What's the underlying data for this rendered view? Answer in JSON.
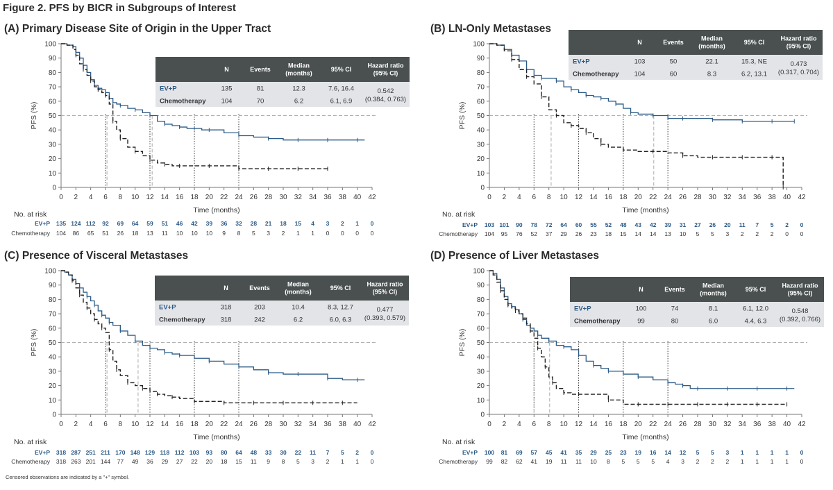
{
  "figure_title": "Figure 2. PFS by BICR in Subgroups of Interest",
  "footnote": "Censored observations are indicated by a \"+\" symbol.",
  "colors": {
    "ev": "#2b5a86",
    "chemo": "#222222",
    "table_header": "#4a5050",
    "table_body": "#e2e4e8",
    "reference": "#b0b0b0"
  },
  "common": {
    "ylabel": "PFS (%)",
    "xlabel": "Time (months)",
    "xticks": [
      0,
      2,
      4,
      6,
      8,
      10,
      12,
      14,
      16,
      18,
      20,
      22,
      24,
      26,
      28,
      30,
      32,
      34,
      36,
      38,
      40,
      42
    ],
    "yticks": [
      0,
      10,
      20,
      30,
      40,
      50,
      60,
      70,
      80,
      90,
      100
    ],
    "risk_title": "No. at risk",
    "table_headers": [
      "N",
      "Events",
      "Median\n(months)",
      "95% CI",
      "Hazard ratio\n(95% CI)"
    ]
  },
  "chart_data": [
    {
      "type": "line",
      "title": "(A) Primary Disease Site of Origin in the Upper Tract",
      "xlim": [
        0,
        42
      ],
      "ylim": [
        0,
        100
      ],
      "series": [
        {
          "name": "EV+P",
          "x": [
            0,
            0.8,
            1.6,
            2,
            2.5,
            3,
            3.5,
            4,
            4.5,
            5,
            5.5,
            6,
            6.5,
            7,
            7.5,
            8,
            9,
            10,
            11,
            12,
            13,
            14,
            15,
            16,
            17,
            18,
            19,
            20,
            22,
            24,
            26,
            28,
            30,
            32,
            34,
            36,
            38,
            40,
            41
          ],
          "y": [
            100,
            99,
            98,
            94,
            90,
            85,
            80,
            75,
            71,
            69,
            68,
            66,
            62,
            59,
            58,
            57,
            55,
            54,
            52,
            50,
            46,
            44,
            43,
            42,
            41,
            41,
            40,
            40,
            38,
            36,
            35,
            34,
            33,
            33,
            33,
            33,
            33,
            33,
            33
          ]
        },
        {
          "name": "Chemotherapy",
          "x": [
            0,
            0.8,
            1.6,
            2,
            2.5,
            3,
            3.5,
            4,
            4.5,
            5,
            5.5,
            6,
            6.5,
            7,
            7.5,
            8,
            9,
            10,
            11,
            12,
            13,
            14,
            15,
            16,
            18,
            20,
            22,
            24,
            26,
            28,
            30,
            32,
            34,
            36
          ],
          "y": [
            100,
            99,
            96,
            92,
            86,
            82,
            78,
            74,
            70,
            68,
            66,
            64,
            58,
            46,
            40,
            34,
            28,
            25,
            22,
            19,
            17,
            16,
            15,
            15,
            15,
            15,
            15,
            13,
            13,
            13,
            13,
            13,
            13,
            13
          ]
        }
      ],
      "medians": [
        6.2,
        12.3
      ],
      "table": {
        "rows": [
          {
            "label": "EV+P",
            "n": "135",
            "events": "81",
            "median": "12.3",
            "ci": "7.6, 16.4"
          },
          {
            "label": "Chemotherapy",
            "n": "104",
            "events": "70",
            "median": "6.2",
            "ci": "6.1, 6.9"
          }
        ],
        "hr": "0.542",
        "hr_ci": "(0.384, 0.763)"
      },
      "at_risk": {
        "EV+P": [
          "135",
          "124",
          "112",
          "92",
          "69",
          "64",
          "59",
          "51",
          "46",
          "42",
          "39",
          "36",
          "32",
          "28",
          "21",
          "18",
          "15",
          "4",
          "3",
          "2",
          "1",
          "0"
        ],
        "Chemotherapy": [
          "104",
          "86",
          "65",
          "51",
          "26",
          "18",
          "13",
          "11",
          "10",
          "10",
          "10",
          "9",
          "8",
          "5",
          "3",
          "2",
          "1",
          "1",
          "0",
          "0",
          "0",
          "0"
        ]
      }
    },
    {
      "type": "line",
      "title": "(B) LN-Only Metastases",
      "xlim": [
        0,
        42
      ],
      "ylim": [
        0,
        100
      ],
      "series": [
        {
          "name": "EV+P",
          "x": [
            0,
            1,
            2,
            3,
            4,
            5,
            6,
            7,
            8,
            9,
            10,
            11,
            12,
            13,
            14,
            15,
            16,
            17,
            18,
            19,
            20,
            22,
            24,
            26,
            28,
            30,
            32,
            34,
            36,
            38,
            40,
            41
          ],
          "y": [
            100,
            99,
            96,
            92,
            88,
            82,
            78,
            76,
            76,
            74,
            70,
            68,
            66,
            64,
            63,
            62,
            60,
            58,
            55,
            52,
            51,
            50,
            48,
            48,
            48,
            47,
            47,
            46,
            46,
            46,
            46,
            46
          ]
        },
        {
          "name": "Chemotherapy",
          "x": [
            0,
            1,
            2,
            3,
            4,
            5,
            6,
            7,
            8,
            9,
            10,
            11,
            12,
            13,
            14,
            15,
            16,
            18,
            20,
            22,
            24,
            26,
            28,
            30,
            32,
            34,
            36,
            38,
            39.5,
            39.5
          ],
          "y": [
            100,
            99,
            95,
            89,
            82,
            77,
            72,
            63,
            54,
            50,
            45,
            43,
            41,
            38,
            34,
            30,
            28,
            26,
            25,
            25,
            24,
            22,
            21,
            21,
            21,
            21,
            21,
            21,
            21,
            0
          ]
        }
      ],
      "medians": [
        8.3,
        22.1
      ],
      "table": {
        "rows": [
          {
            "label": "EV+P",
            "n": "103",
            "events": "50",
            "median": "22.1",
            "ci": "15.3, NE"
          },
          {
            "label": "Chemotherapy",
            "n": "104",
            "events": "60",
            "median": "8.3",
            "ci": "6.2, 13.1"
          }
        ],
        "hr": "0.473",
        "hr_ci": "(0.317, 0.704)"
      },
      "at_risk": {
        "EV+P": [
          "103",
          "101",
          "90",
          "78",
          "72",
          "64",
          "60",
          "55",
          "52",
          "48",
          "43",
          "42",
          "39",
          "31",
          "27",
          "26",
          "20",
          "11",
          "7",
          "5",
          "2",
          "0"
        ],
        "Chemotherapy": [
          "104",
          "95",
          "76",
          "52",
          "37",
          "29",
          "26",
          "23",
          "18",
          "15",
          "14",
          "14",
          "13",
          "10",
          "5",
          "5",
          "3",
          "2",
          "2",
          "2",
          "0",
          "0"
        ]
      }
    },
    {
      "type": "line",
      "title": "(C) Presence of Visceral Metastases",
      "xlim": [
        0,
        42
      ],
      "ylim": [
        0,
        100
      ],
      "series": [
        {
          "name": "EV+P",
          "x": [
            0,
            0.5,
            1,
            1.5,
            2,
            2.5,
            3,
            3.5,
            4,
            4.5,
            5,
            5.5,
            6,
            6.5,
            7,
            8,
            9,
            10,
            11,
            12,
            13,
            14,
            15,
            16,
            18,
            20,
            22,
            24,
            26,
            28,
            30,
            32,
            34,
            36,
            38,
            40,
            41
          ],
          "y": [
            100,
            99,
            97,
            94,
            91,
            88,
            85,
            82,
            79,
            76,
            72,
            69,
            67,
            64,
            62,
            58,
            55,
            51,
            48,
            46,
            45,
            43,
            42,
            41,
            39,
            37,
            35,
            33,
            31,
            29,
            28,
            28,
            28,
            25,
            24,
            24,
            24
          ]
        },
        {
          "name": "Chemotherapy",
          "x": [
            0,
            0.5,
            1,
            1.5,
            2,
            2.5,
            3,
            3.5,
            4,
            4.5,
            5,
            5.5,
            6,
            6.5,
            7,
            7.5,
            8,
            9,
            10,
            11,
            12,
            13,
            14,
            15,
            16,
            18,
            20,
            22,
            24,
            26,
            28,
            30,
            32,
            34,
            36,
            38,
            40
          ],
          "y": [
            100,
            99,
            97,
            93,
            88,
            83,
            78,
            74,
            70,
            66,
            63,
            60,
            57,
            45,
            37,
            31,
            27,
            22,
            20,
            18,
            16,
            14,
            13,
            12,
            11,
            9,
            9,
            8,
            8,
            8,
            8,
            8,
            8,
            8,
            8,
            8,
            8
          ]
        }
      ],
      "medians": [
        6.2,
        10.4
      ],
      "table": {
        "rows": [
          {
            "label": "EV+P",
            "n": "318",
            "events": "203",
            "median": "10.4",
            "ci": "8.3, 12.7"
          },
          {
            "label": "Chemotherapy",
            "n": "318",
            "events": "242",
            "median": "6.2",
            "ci": "6.0, 6.3"
          }
        ],
        "hr": "0.477",
        "hr_ci": "(0.393, 0.579)"
      },
      "at_risk": {
        "EV+P": [
          "318",
          "287",
          "251",
          "211",
          "170",
          "148",
          "129",
          "118",
          "112",
          "103",
          "93",
          "80",
          "64",
          "48",
          "33",
          "30",
          "22",
          "11",
          "7",
          "5",
          "2",
          "0"
        ],
        "Chemotherapy": [
          "318",
          "263",
          "201",
          "144",
          "77",
          "49",
          "36",
          "29",
          "27",
          "22",
          "20",
          "18",
          "15",
          "11",
          "9",
          "8",
          "5",
          "3",
          "2",
          "1",
          "1",
          "0"
        ]
      }
    },
    {
      "type": "line",
      "title": "(D) Presence of Liver Metastases",
      "xlim": [
        0,
        42
      ],
      "ylim": [
        0,
        100
      ],
      "series": [
        {
          "name": "EV+P",
          "x": [
            0,
            0.5,
            1,
            1.5,
            2,
            2.5,
            3,
            3.5,
            4,
            4.5,
            5,
            5.5,
            6,
            6.5,
            7,
            8,
            9,
            10,
            11,
            12,
            13,
            14,
            15,
            16,
            18,
            20,
            22,
            24,
            25,
            26,
            27,
            28,
            30,
            32,
            34,
            36,
            38,
            40,
            41
          ],
          "y": [
            100,
            98,
            94,
            88,
            82,
            77,
            75,
            73,
            70,
            66,
            62,
            60,
            58,
            55,
            53,
            51,
            48,
            47,
            45,
            41,
            37,
            34,
            32,
            30,
            28,
            26,
            24,
            22,
            21,
            20,
            18,
            18,
            18,
            18,
            18,
            18,
            18,
            18,
            18
          ]
        },
        {
          "name": "Chemotherapy",
          "x": [
            0,
            0.5,
            1,
            1.5,
            2,
            2.5,
            3,
            3.5,
            4,
            4.5,
            5,
            5.5,
            6,
            6.5,
            7,
            7.5,
            8,
            8.5,
            9,
            10,
            11,
            12,
            14,
            16,
            18,
            20,
            22,
            24,
            26,
            28,
            30,
            32,
            34,
            36,
            38,
            40
          ],
          "y": [
            100,
            97,
            92,
            86,
            80,
            76,
            74,
            72,
            70,
            67,
            63,
            58,
            53,
            46,
            40,
            33,
            26,
            22,
            18,
            15,
            14,
            14,
            14,
            10,
            7,
            7,
            7,
            7,
            7,
            7,
            7,
            7,
            7,
            7,
            7,
            7
          ]
        }
      ],
      "medians": [
        6.0,
        8.1
      ],
      "table": {
        "rows": [
          {
            "label": "EV+P",
            "n": "100",
            "events": "74",
            "median": "8.1",
            "ci": "6.1, 12.0"
          },
          {
            "label": "Chemotherapy",
            "n": "99",
            "events": "80",
            "median": "6.0",
            "ci": "4.4, 6.3"
          }
        ],
        "hr": "0.548",
        "hr_ci": "(0.392, 0.766)"
      },
      "at_risk": {
        "EV+P": [
          "100",
          "81",
          "69",
          "57",
          "45",
          "41",
          "35",
          "29",
          "25",
          "23",
          "19",
          "16",
          "14",
          "12",
          "5",
          "5",
          "3",
          "1",
          "1",
          "1",
          "1",
          "0"
        ],
        "Chemotherapy": [
          "99",
          "82",
          "62",
          "41",
          "19",
          "11",
          "11",
          "10",
          "8",
          "5",
          "5",
          "5",
          "4",
          "3",
          "2",
          "2",
          "2",
          "1",
          "1",
          "1",
          "1",
          "0"
        ]
      }
    }
  ]
}
